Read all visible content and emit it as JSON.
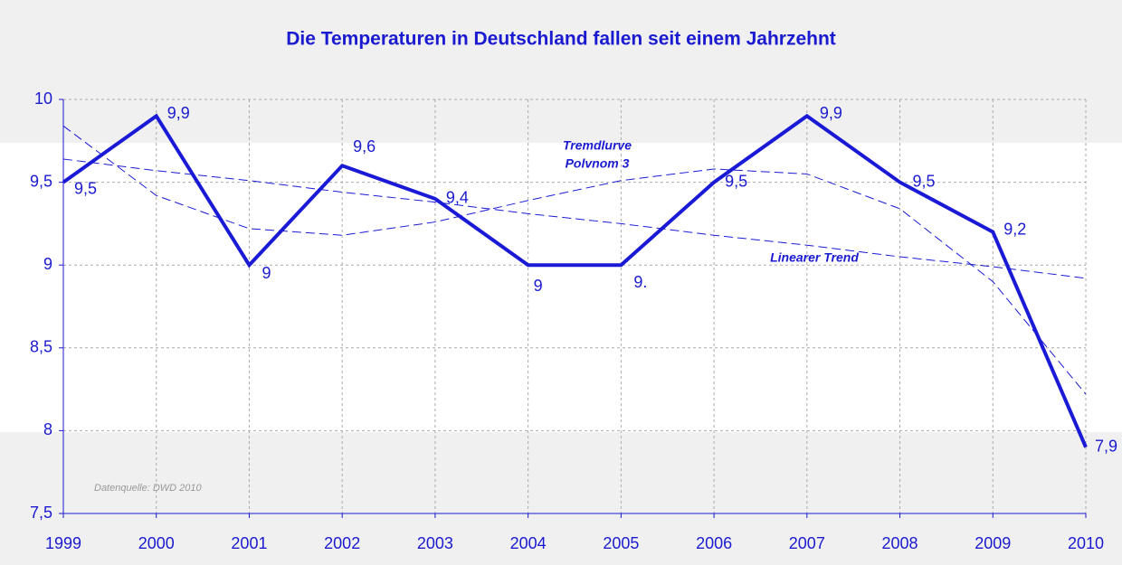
{
  "chart_data": {
    "type": "line",
    "title": "Die Temperaturen in Deutschland fallen seit einem Jahrzehnt",
    "x": [
      1999,
      2000,
      2001,
      2002,
      2003,
      2004,
      2005,
      2006,
      2007,
      2008,
      2009,
      2010
    ],
    "series": [
      {
        "color": "#1a1ad6",
        "style": "solid",
        "width": 4,
        "values": [
          9.5,
          9.9,
          9,
          9.6,
          9.4,
          9,
          9,
          9.5,
          9.9,
          9.5,
          9.2,
          7.9
        ],
        "value_labels": [
          "9,5",
          "9,9",
          "9",
          "9,6",
          "9,4",
          "9",
          "9.",
          "9,5",
          "9,9",
          "9,5",
          "9,2",
          "7,9"
        ]
      },
      {
        "color": "#1a1ad6",
        "style": "dashed",
        "width": 1,
        "values": [
          9.64,
          9.57,
          9.51,
          9.44,
          9.38,
          9.31,
          9.25,
          9.18,
          9.12,
          9.05,
          8.99,
          8.92
        ]
      },
      {
        "color": "#1a1ad6",
        "style": "dashed",
        "width": 1,
        "values": [
          9.84,
          9.42,
          9.22,
          9.18,
          9.26,
          9.39,
          9.51,
          9.58,
          9.55,
          9.34,
          8.9,
          8.22
        ]
      }
    ],
    "annotations": [
      {
        "text": "Tremdlurve"
      },
      {
        "text": "Polvnom 3"
      },
      {
        "text": "Linearer Trend"
      },
      {
        "text": "Datenquelle: DWD 2010"
      }
    ],
    "xlim": [
      1999,
      2010
    ],
    "xticks": [
      1999,
      2000,
      2001,
      2002,
      2003,
      2004,
      2005,
      2006,
      2007,
      2008,
      2009,
      2010
    ],
    "ylim": [
      7.5,
      10
    ],
    "yticks": [
      {
        "value": 7.5,
        "label": "7,5"
      },
      8,
      {
        "value": 8.5,
        "label": "8,5"
      },
      9,
      {
        "value": 9.5,
        "label": "9,5"
      },
      10
    ],
    "grid": true
  }
}
